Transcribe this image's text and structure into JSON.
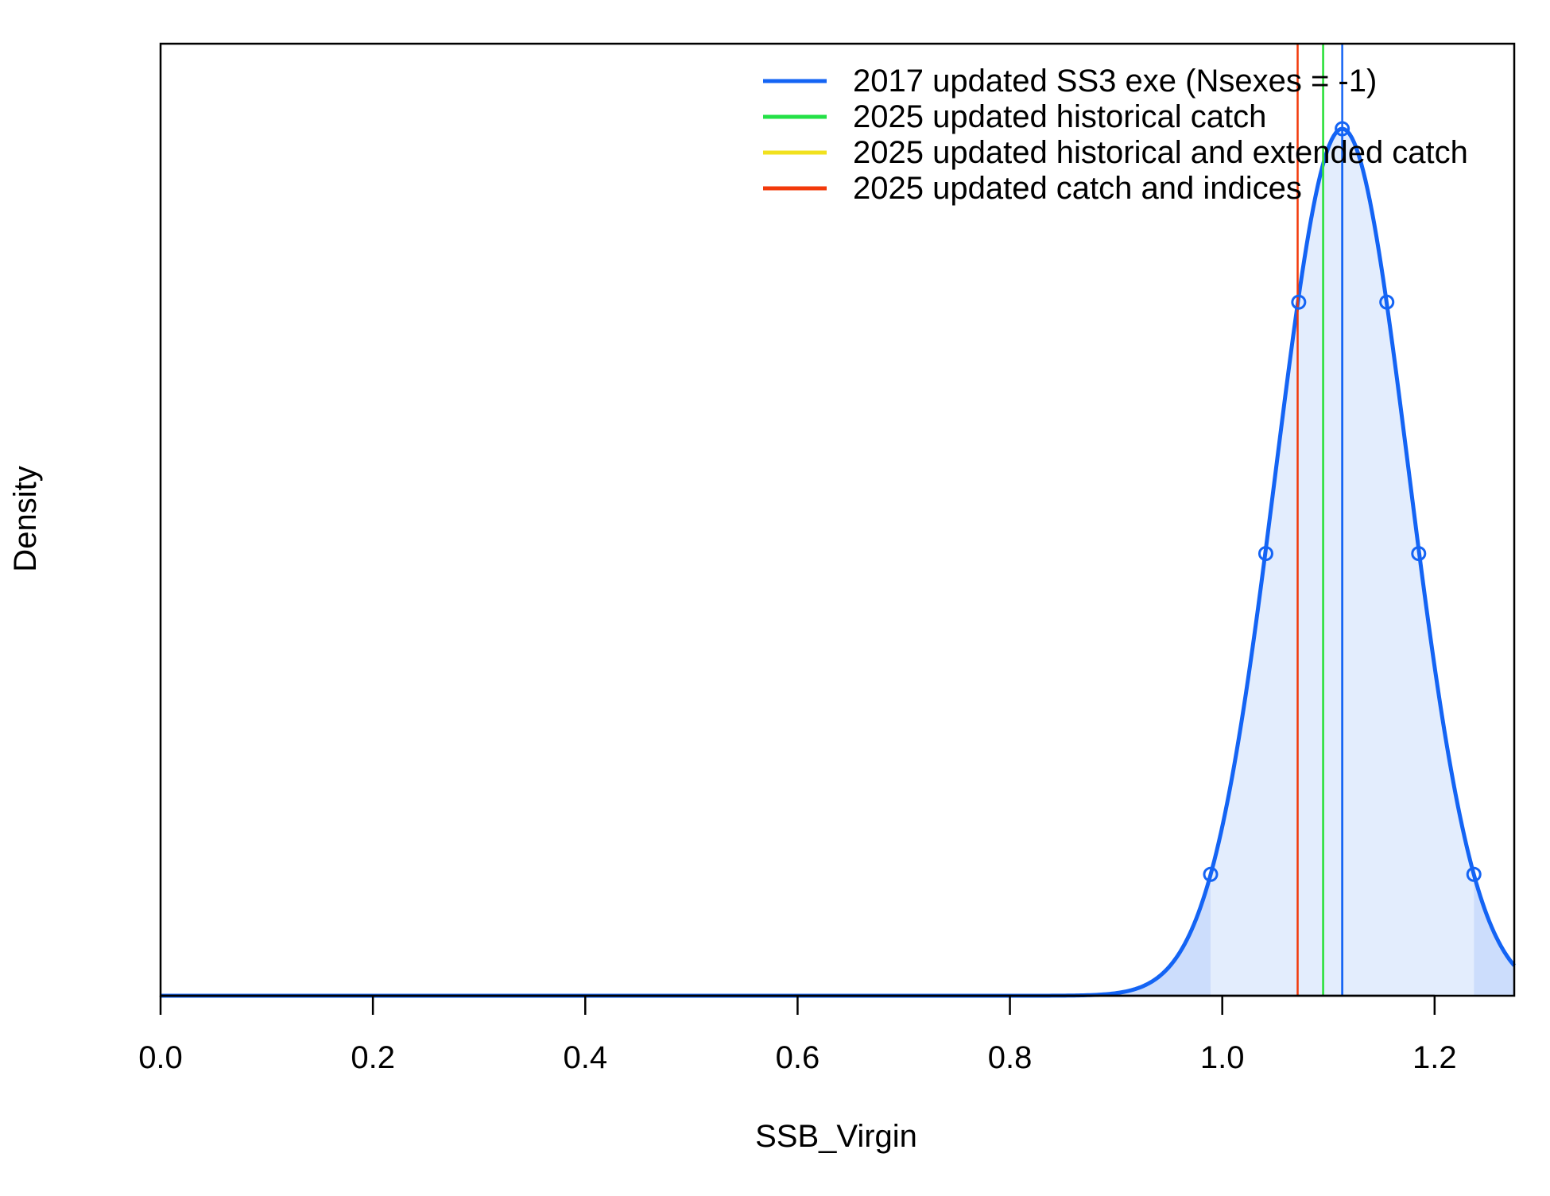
{
  "chart_data": {
    "type": "line",
    "title": "",
    "xlabel": "SSB_Virgin",
    "ylabel": "Density",
    "xlim": [
      0,
      1.275
    ],
    "xticks": [
      "0.0",
      "0.2",
      "0.4",
      "0.6",
      "0.8",
      "1.0",
      "1.2"
    ],
    "xtick_values": [
      0,
      0.2,
      0.4,
      0.6,
      0.8,
      1.0,
      1.2
    ],
    "y_ticks_shown": false,
    "grid": false,
    "legend_position": "top-right",
    "distribution": {
      "shape": "normal",
      "mean": 1.113,
      "sd": 0.0625,
      "peak_label": "none",
      "points": [
        {
          "x": 0.989,
          "density_rel": 0.14
        },
        {
          "x": 1.041,
          "density_rel": 0.51
        },
        {
          "x": 1.072,
          "density_rel": 0.8
        },
        {
          "x": 1.113,
          "density_rel": 1.0
        },
        {
          "x": 1.155,
          "density_rel": 0.8
        },
        {
          "x": 1.185,
          "density_rel": 0.51
        },
        {
          "x": 1.237,
          "density_rel": 0.14
        }
      ],
      "ci_lower": 0.989,
      "ci_upper": 1.237
    },
    "series": [
      {
        "name": "2017 updated SS3 exe (Nsexes = -1)",
        "color": "#1464F4",
        "estimate": 1.113
      },
      {
        "name": "2025 updated historical catch",
        "color": "#23E146",
        "estimate": 1.095
      },
      {
        "name": "2025 updated historical and extended catch",
        "color": "#F1E11E",
        "estimate": 1.095
      },
      {
        "name": "2025 updated catch and indices",
        "color": "#F2390A",
        "estimate": 1.071
      }
    ],
    "colors": {
      "fill_inner": "#E3EDFD",
      "fill_tails": "#CCDDFC",
      "axis": "#000000"
    }
  }
}
